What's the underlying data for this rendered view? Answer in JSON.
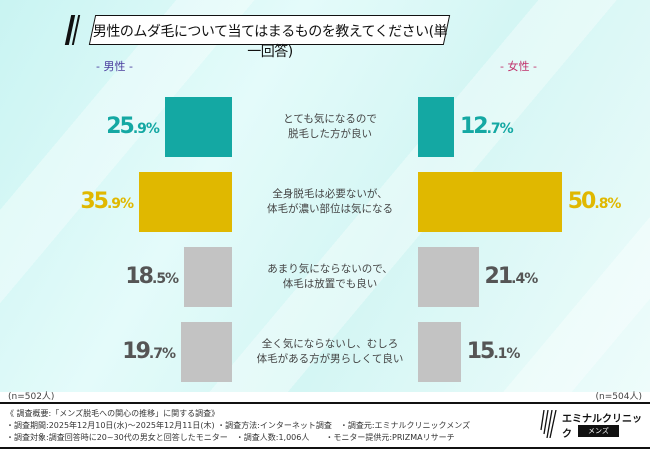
{
  "title": "男性のムダ毛について当てはまるものを教えてください(単一回答)",
  "colors": {
    "teal": "#14a8a3",
    "yellow": "#e0b800",
    "gray": "#c3c3c3",
    "male_label": "#4b3d9e",
    "female_label": "#c0306a"
  },
  "chart_data": {
    "type": "bar",
    "title": "男性のムダ毛について当てはまるものを教えてください(単一回答)",
    "categories": [
      "とても気になるので\n脱毛した方が良い",
      "全身脱毛は必要ないが、\n体毛が濃い部位は気になる",
      "あまり気にならないので、\n体毛は放置でも良い",
      "全く気にならないし、むしろ\n体毛がある方が男らしくて良い"
    ],
    "series": [
      {
        "name": "- 男性 -",
        "values": [
          25.9,
          35.9,
          18.5,
          19.7
        ],
        "n": "(n=502人)"
      },
      {
        "name": "- 女性 -",
        "values": [
          12.7,
          50.8,
          21.4,
          15.1
        ],
        "n": "(n=504人)"
      }
    ],
    "unit": "%"
  },
  "footer": {
    "lines": [
      "《 調査概要:「メンズ脱毛への関心の推移」に関する調査》",
      "・調査期間:2025年12月10日(水)～2025年12月11日(木) ・調査方法:インターネット調査　・調査元:エミナルクリニックメンズ",
      "・調査対象:調査回答時に20~30代の男女と回答したモニター　・調査人数:1,006人　　・モニター提供元:PRIZMAリサーチ"
    ],
    "logo_text": "エミナルクリニック",
    "logo_sub": "メンズ"
  }
}
